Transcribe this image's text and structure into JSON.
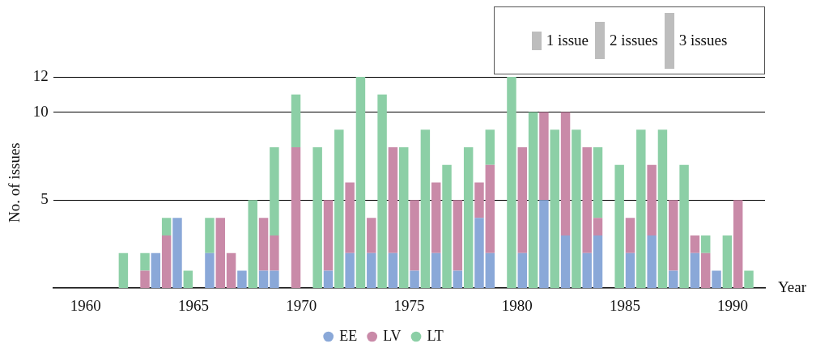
{
  "chart_data": {
    "type": "bar",
    "xlabel": "Year",
    "ylabel": "No. of issues",
    "categories": [
      null,
      null,
      "1960",
      null,
      null,
      null,
      null,
      null,
      null,
      null,
      null,
      null,
      "1965",
      null,
      null,
      null,
      null,
      null,
      null,
      null,
      null,
      null,
      "1970",
      null,
      null,
      null,
      null,
      null,
      null,
      null,
      null,
      null,
      "1975",
      null,
      null,
      null,
      null,
      null,
      null,
      null,
      null,
      null,
      "1980",
      null,
      null,
      null,
      null,
      null,
      null,
      null,
      null,
      null,
      "1985",
      null,
      null,
      null,
      null,
      null,
      null,
      null,
      null,
      null,
      "1990",
      null,
      null,
      null
    ],
    "series": [
      {
        "name": "EE",
        "color": "#8aa8d8",
        "values": [
          null,
          null,
          null,
          null,
          null,
          null,
          null,
          null,
          null,
          2,
          null,
          4,
          null,
          null,
          2,
          null,
          null,
          1,
          null,
          1,
          1,
          null,
          null,
          null,
          null,
          1,
          null,
          2,
          null,
          2,
          null,
          2,
          null,
          1,
          null,
          2,
          null,
          1,
          null,
          4,
          2,
          null,
          null,
          2,
          null,
          5,
          null,
          3,
          null,
          2,
          3,
          null,
          null,
          2,
          null,
          3,
          null,
          1,
          null,
          2,
          null,
          1,
          null,
          null,
          null,
          null
        ]
      },
      {
        "name": "LV",
        "color": "#c98aa8",
        "values": [
          null,
          null,
          null,
          null,
          null,
          null,
          null,
          null,
          1,
          null,
          3,
          null,
          null,
          null,
          null,
          4,
          2,
          null,
          null,
          3,
          2,
          null,
          8,
          null,
          null,
          4,
          null,
          4,
          null,
          2,
          null,
          6,
          null,
          4,
          null,
          4,
          null,
          4,
          null,
          2,
          5,
          null,
          null,
          6,
          null,
          5,
          null,
          7,
          null,
          6,
          1,
          null,
          null,
          2,
          null,
          4,
          null,
          4,
          null,
          1,
          2,
          null,
          null,
          5,
          null,
          null
        ]
      },
      {
        "name": "LT",
        "color": "#8ccfa6",
        "values": [
          null,
          null,
          null,
          null,
          null,
          null,
          2,
          null,
          1,
          null,
          1,
          null,
          1,
          null,
          2,
          null,
          null,
          null,
          5,
          null,
          5,
          null,
          3,
          null,
          8,
          null,
          9,
          null,
          12,
          null,
          11,
          null,
          8,
          null,
          9,
          null,
          7,
          null,
          8,
          null,
          2,
          null,
          12,
          null,
          10,
          null,
          9,
          null,
          9,
          null,
          4,
          null,
          7,
          null,
          9,
          null,
          9,
          null,
          7,
          null,
          1,
          null,
          3,
          null,
          1,
          null
        ]
      }
    ],
    "stacked": true,
    "ylim": [
      0,
      12
    ],
    "yticks": [
      5,
      10,
      12
    ],
    "grid": "y",
    "legend": "bottom",
    "annotations": [
      "1 issue",
      "2 issues",
      "3 issues"
    ]
  }
}
